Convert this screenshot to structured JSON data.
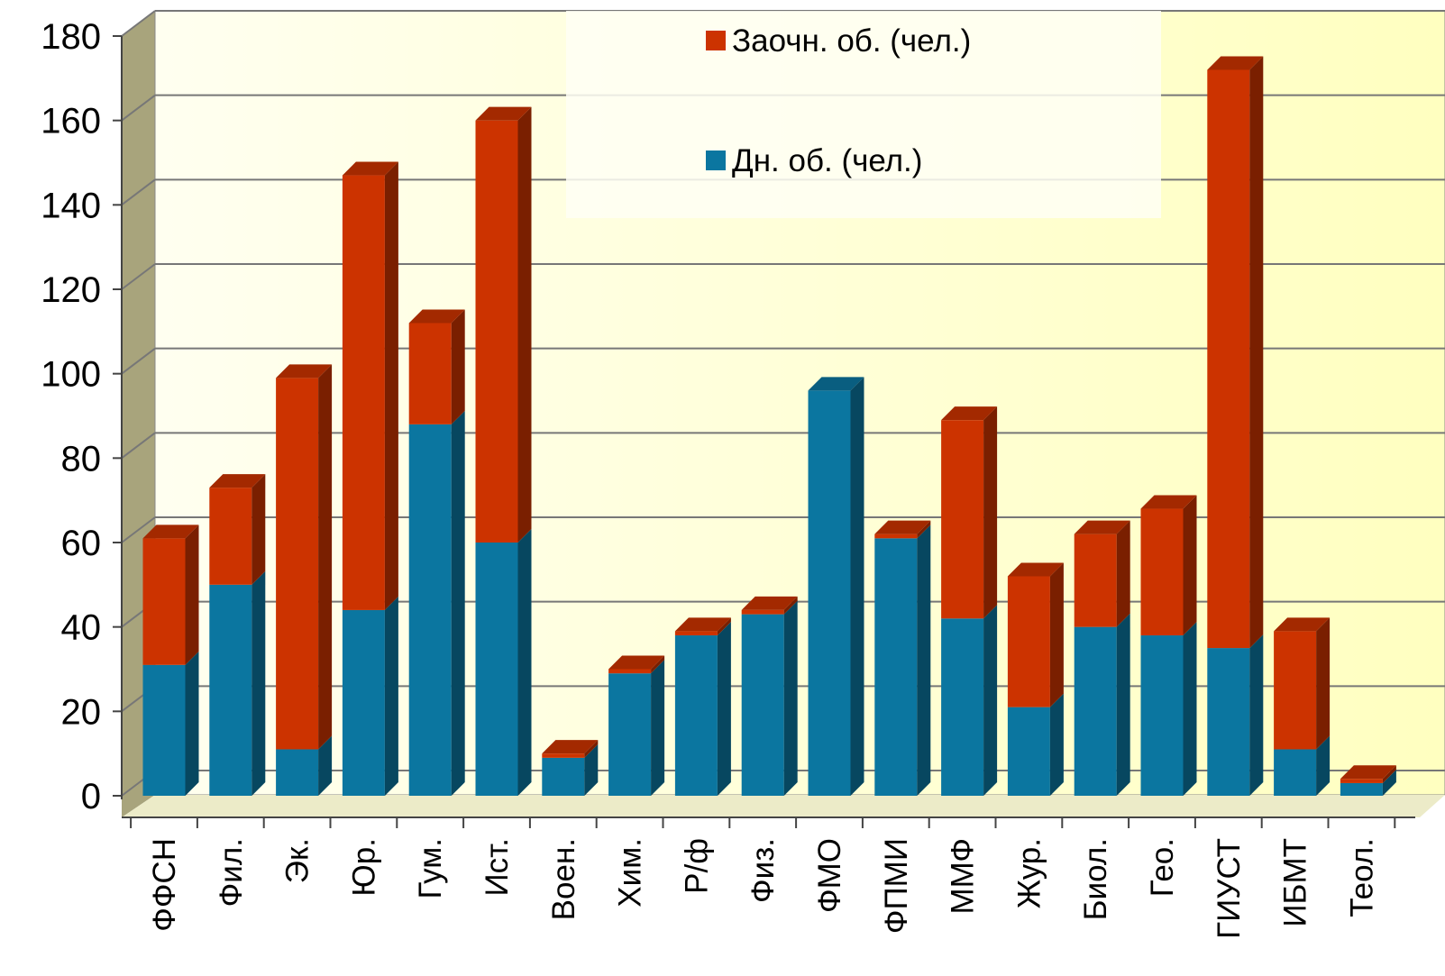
{
  "chart_data": {
    "type": "bar",
    "stacked": true,
    "three_d": true,
    "categories": [
      "ФФСН",
      "Фил.",
      "Эк.",
      "Юр.",
      "Гум.",
      "Ист.",
      "Воен.",
      "Хим.",
      "Р/ф",
      "Физ.",
      "ФМО",
      "ФПМИ",
      "ММФ",
      "Жур.",
      "Биол.",
      "Гео.",
      "ГИУСТ",
      "ИБМТ",
      "Теол."
    ],
    "series": [
      {
        "name": "Дн. об. (чел.)",
        "color": "#0b76a0",
        "values": [
          31,
          50,
          11,
          44,
          88,
          60,
          9,
          29,
          38,
          43,
          96,
          61,
          42,
          21,
          40,
          38,
          35,
          11,
          3
        ]
      },
      {
        "name": "Заочн. об. (чел.)",
        "color": "#cc3300",
        "values": [
          30,
          23,
          88,
          103,
          24,
          100,
          1,
          1,
          1,
          1,
          0,
          1,
          47,
          31,
          22,
          30,
          137,
          28,
          1
        ]
      }
    ],
    "ylim": [
      0,
      180
    ],
    "yticks": [
      "0",
      "20",
      "40",
      "60",
      "80",
      "100",
      "120",
      "140",
      "160",
      "180"
    ],
    "grid": true,
    "legend": {
      "position": "top-center",
      "order": [
        "Заочн. об. (чел.)",
        "Дн. об. (чел.)"
      ]
    },
    "colors": {
      "wall": "#ffffc8",
      "side_wall": "#a8a47c",
      "grid": "#777777",
      "legend_bg": "#fffff4"
    }
  }
}
